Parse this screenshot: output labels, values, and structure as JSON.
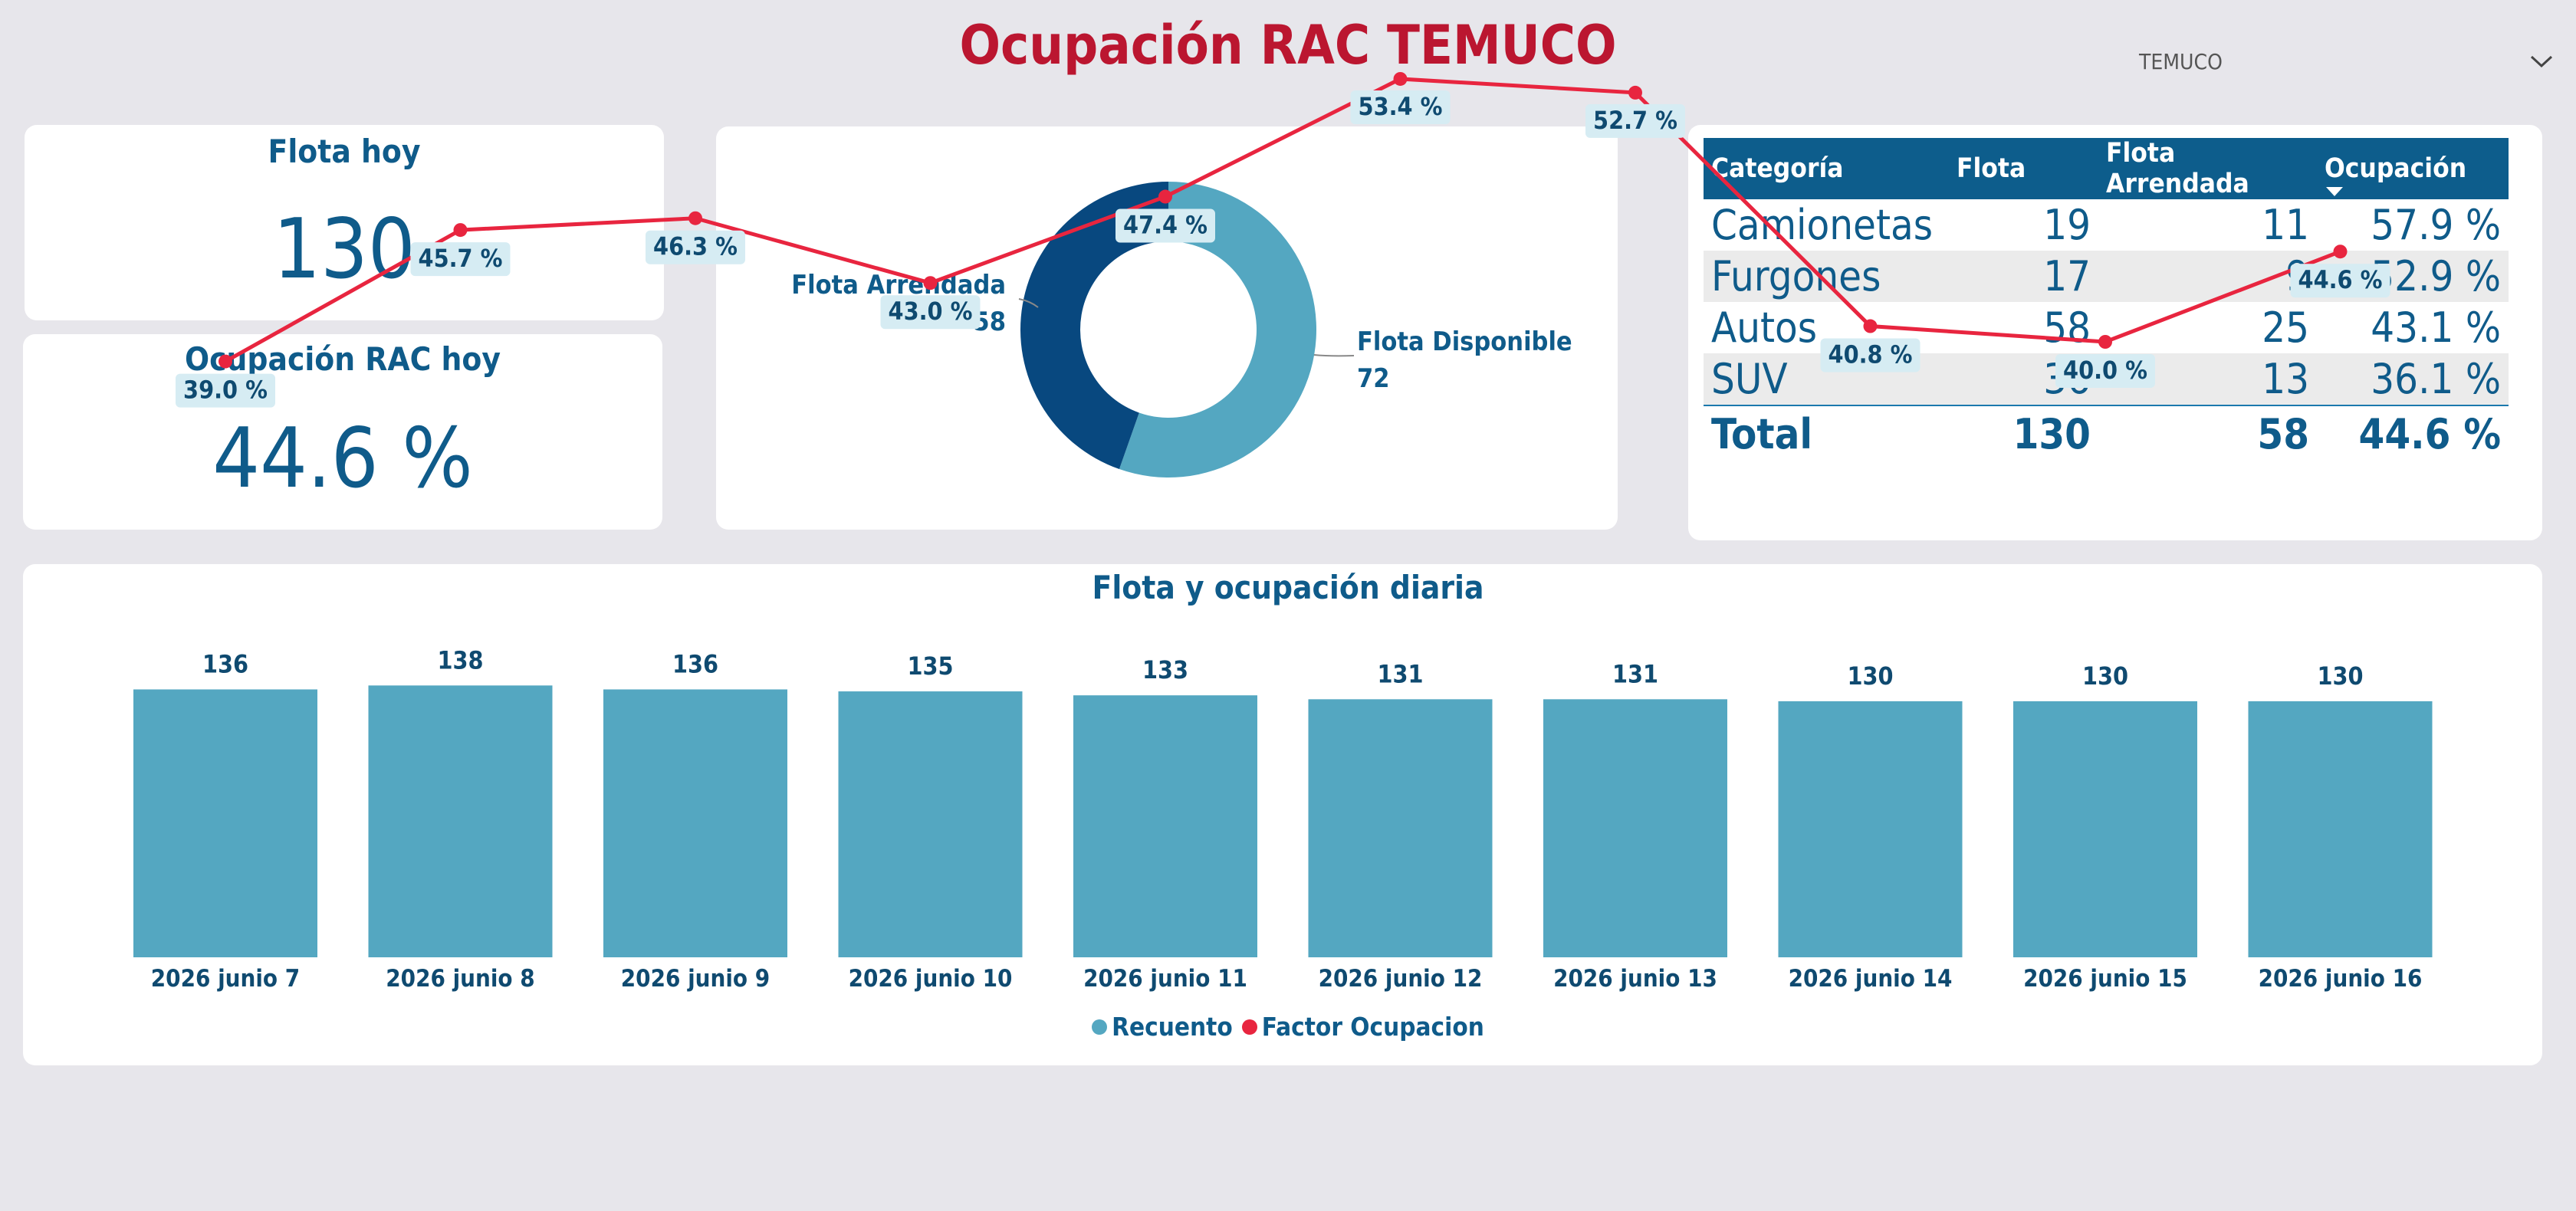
{
  "header": {
    "title": "Ocupación RAC TEMUCO"
  },
  "slicer": {
    "value": "TEMUCO",
    "icon": "chevron-down-icon"
  },
  "kpis": {
    "fleet_today": {
      "label": "Flota hoy",
      "value": "130"
    },
    "occupancy_today": {
      "label": "Ocupación RAC hoy",
      "value": "44.6 %"
    }
  },
  "donut": {
    "leased": {
      "label": "Flota Arrendada",
      "value": "58"
    },
    "available": {
      "label": "Flota Disponible",
      "value": "72"
    },
    "colors": {
      "leased": "#08487f",
      "available": "#54a7c1"
    }
  },
  "category_table": {
    "headers": [
      "Categoría",
      "Flota",
      "Flota Arrendada",
      "Ocupación"
    ],
    "rows": [
      [
        "Camionetas",
        "19",
        "11",
        "57.9 %"
      ],
      [
        "Furgones",
        "17",
        "9",
        "52.9 %"
      ],
      [
        "Autos",
        "58",
        "25",
        "43.1 %"
      ],
      [
        "SUV",
        "36",
        "13",
        "36.1 %"
      ]
    ],
    "total": [
      "Total",
      "130",
      "58",
      "44.6 %"
    ]
  },
  "chart_data": {
    "type": "bar",
    "title": "Flota y ocupación diaria",
    "categories": [
      "2026 junio 7",
      "2026 junio 8",
      "2026 junio 9",
      "2026 junio 10",
      "2026 junio 11",
      "2026 junio 12",
      "2026 junio 13",
      "2026 junio 14",
      "2026 junio 15",
      "2026 junio 16"
    ],
    "series": [
      {
        "name": "Recuento",
        "type": "bar",
        "color": "#54a7c1",
        "values": [
          136,
          138,
          136,
          135,
          133,
          131,
          131,
          130,
          130,
          130
        ]
      },
      {
        "name": "Factor Ocupacion",
        "type": "line",
        "color": "#e8253f",
        "values": [
          39.0,
          45.7,
          46.3,
          43.0,
          47.4,
          53.4,
          52.7,
          40.8,
          40.0,
          44.6
        ],
        "labels": [
          "39.0 %",
          "45.7 %",
          "46.3 %",
          "43.0 %",
          "47.4 %",
          "53.4 %",
          "52.7 %",
          "40.8 %",
          "40.0 %",
          "44.6 %"
        ]
      }
    ],
    "legend": "bottom",
    "grid": false
  }
}
